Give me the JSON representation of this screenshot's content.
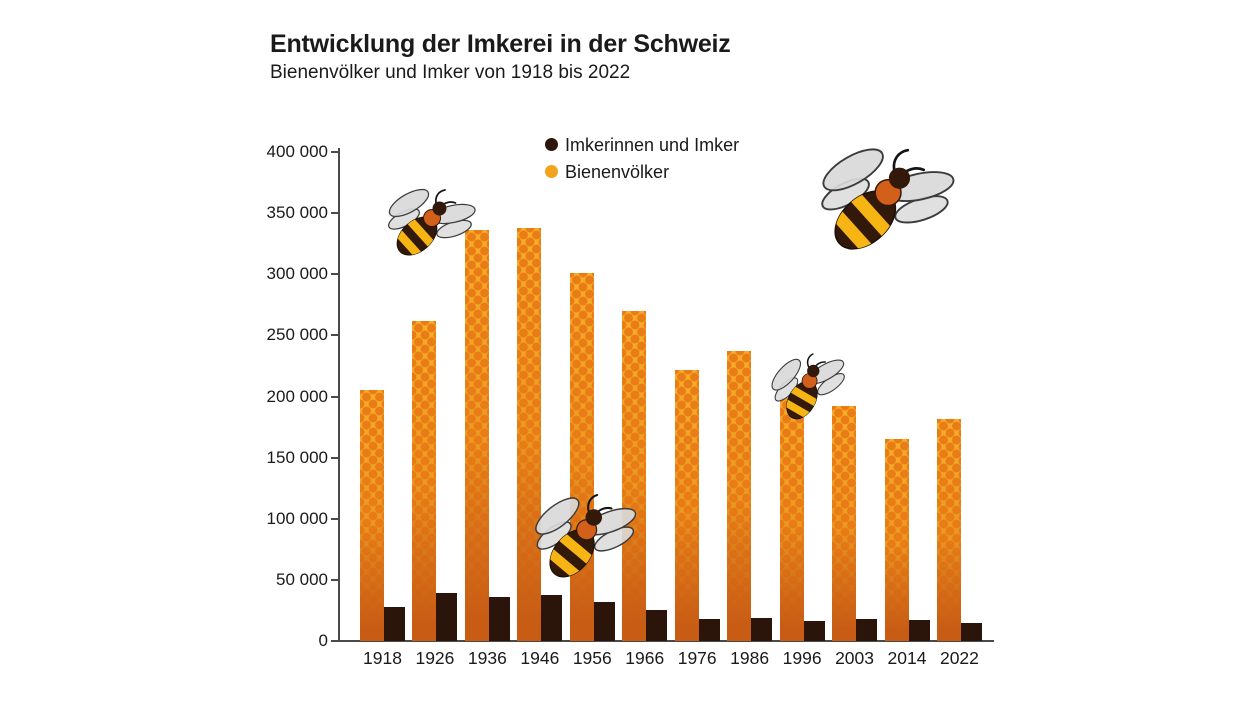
{
  "chart_data": {
    "type": "bar",
    "title": "Entwicklung der Imkerei in der Schweiz",
    "subtitle": "Bienenvölker und Imker von 1918 bis 2022",
    "categories": [
      "1918",
      "1926",
      "1936",
      "1946",
      "1956",
      "1966",
      "1976",
      "1986",
      "1996",
      "2003",
      "2014",
      "2022"
    ],
    "series": [
      {
        "name": "Imkerinnen und Imker",
        "color": "#2e1708",
        "values": [
          28000,
          39000,
          36000,
          38000,
          32000,
          25000,
          18000,
          19000,
          16000,
          18000,
          17000,
          15000
        ]
      },
      {
        "name": "Bienenvölker",
        "color": "#f0a41e",
        "values": [
          205000,
          262000,
          336000,
          338000,
          301000,
          270000,
          222000,
          237000,
          199000,
          192000,
          165000,
          182000
        ]
      }
    ],
    "xlabel": "",
    "ylabel": "",
    "ylim": [
      0,
      400000
    ],
    "ytick_step": 50000,
    "ytick_labels": [
      "400 000",
      "350 000",
      "300 000",
      "250 000",
      "200 000",
      "150 000",
      "100 000",
      "50 000",
      "0"
    ],
    "grid": false,
    "legend_position": "top-center",
    "colors": {
      "bar_top": "#f6ad27",
      "bar_bottom": "#c85c15",
      "honeycomb_dot": "#e97c16",
      "imker_bar": "#2b1409",
      "axis": "#4a4a4a"
    },
    "decorative_icons": [
      "bee-icon",
      "bee-icon",
      "bee-icon",
      "bee-icon"
    ]
  }
}
